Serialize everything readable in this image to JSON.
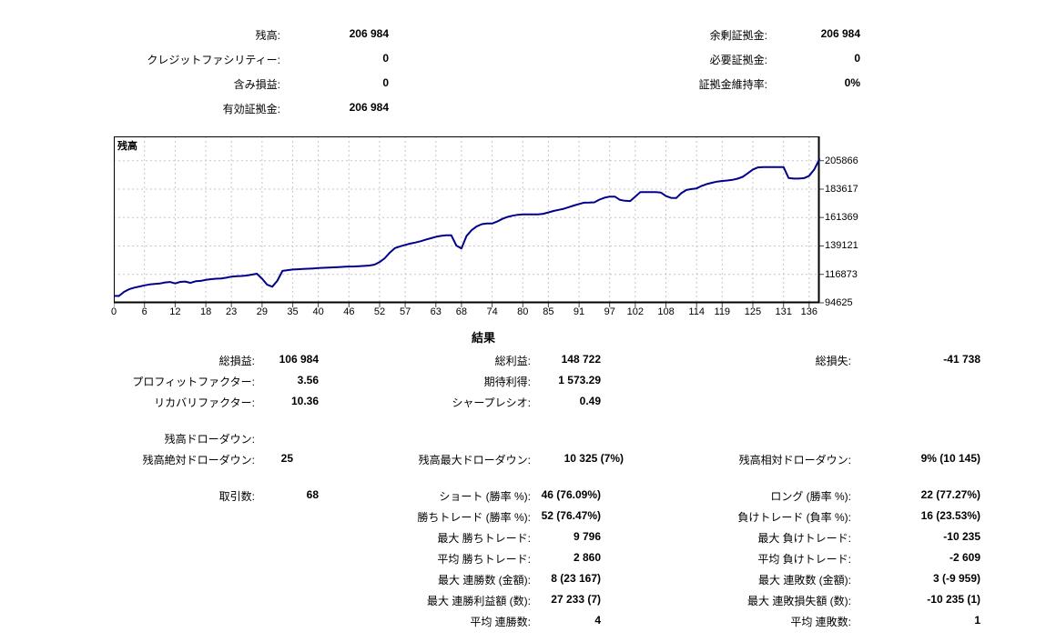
{
  "account_summary": {
    "left": [
      {
        "label": "残高:",
        "value": "206 984"
      },
      {
        "label": "クレジットファシリティー:",
        "value": "0"
      },
      {
        "label": "含み損益:",
        "value": "0"
      },
      {
        "label": "有効証拠金:",
        "value": "206 984"
      }
    ],
    "right": [
      {
        "label": "余剰証拠金:",
        "value": "206 984"
      },
      {
        "label": "必要証拠金:",
        "value": "0"
      },
      {
        "label": "証拠金維持率:",
        "value": "0%"
      }
    ]
  },
  "chart_data": {
    "type": "line",
    "title": "残高",
    "xlabel": "",
    "ylabel": "",
    "grid": "dashed",
    "legend_position": "top-left-inside",
    "x_range": [
      0,
      138
    ],
    "y_axis_min": 94625,
    "y_axis_max": 224900,
    "x_ticks": [
      0,
      6,
      12,
      18,
      23,
      29,
      35,
      40,
      46,
      52,
      57,
      63,
      68,
      74,
      80,
      85,
      91,
      97,
      102,
      108,
      114,
      119,
      125,
      131,
      136
    ],
    "y_ticks": [
      94625,
      116873,
      139121,
      161369,
      183617,
      205866
    ],
    "series": [
      {
        "name": "残高",
        "color": "#00008b",
        "values": [
          100000,
          99975,
          103200,
          105200,
          106500,
          107400,
          108300,
          109000,
          109400,
          109700,
          110600,
          110900,
          109800,
          111000,
          111300,
          110200,
          111500,
          111800,
          112600,
          113100,
          113500,
          113700,
          114300,
          115100,
          115400,
          115600,
          116000,
          116700,
          117400,
          113500,
          108800,
          107255,
          112000,
          119600,
          120200,
          120700,
          120900,
          121100,
          121300,
          121500,
          121800,
          122000,
          122200,
          122400,
          122600,
          122800,
          123000,
          123100,
          123300,
          123500,
          123800,
          124500,
          126500,
          129500,
          134000,
          137500,
          138800,
          140000,
          141000,
          141800,
          142800,
          144000,
          145200,
          146300,
          147000,
          147500,
          147500,
          139500,
          137175,
          147000,
          151500,
          154500,
          156200,
          156700,
          156700,
          158300,
          160300,
          161800,
          162800,
          163500,
          163800,
          163800,
          163800,
          163900,
          164300,
          165400,
          166500,
          167400,
          168200,
          169500,
          170800,
          172000,
          173000,
          173100,
          173300,
          175400,
          176900,
          177800,
          177800,
          175200,
          174500,
          174300,
          177800,
          181300,
          181300,
          181300,
          181300,
          181000,
          178200,
          176800,
          176600,
          180500,
          183000,
          183700,
          184200,
          186200,
          187600,
          188600,
          189500,
          190000,
          190400,
          190900,
          191800,
          193200,
          196000,
          199000,
          200600,
          200900,
          200900,
          200900,
          200900,
          200900,
          192300,
          191900,
          191900,
          192200,
          194000,
          199000,
          206984
        ]
      }
    ]
  },
  "results": {
    "title": "結果",
    "rows": [
      {
        "c1l": "総損益:",
        "c1v": "106 984",
        "c2l": "総利益:",
        "c2v": "148 722",
        "c3l": "総損失:",
        "c3v": "-41 738"
      },
      {
        "c1l": "プロフィットファクター:",
        "c1v": "3.56",
        "c2l": "期待利得:",
        "c2v": "1 573.29"
      },
      {
        "c1l": "リカバリファクター:",
        "c1v": "10.36",
        "c2l": "シャープレシオ:",
        "c2v": "0.49"
      },
      {
        "c1l": "残高ドローダウン:"
      },
      {
        "c1l": "残高絶対ドローダウン:",
        "c1v": "25",
        "c2l": "残高最大ドローダウン:",
        "c2v": "10 325 (7%)",
        "c3l": "残高相対ドローダウン:",
        "c3v": "9% (10 145)"
      },
      {
        "c1l": "取引数:",
        "c1v": "68",
        "c2l": "ショート (勝率 %):",
        "c2v": "46 (76.09%)",
        "c3l": "ロング (勝率 %):",
        "c3v": "22 (77.27%)"
      },
      {
        "c2l": "勝ちトレード (勝率 %):",
        "c2v": "52 (76.47%)",
        "c3l": "負けトレード (負率 %):",
        "c3v": "16 (23.53%)"
      },
      {
        "c2l": "最大 勝ちトレード:",
        "c2v": "9 796",
        "c3l": "最大 負けトレード:",
        "c3v": "-10 235"
      },
      {
        "c2l": "平均 勝ちトレード:",
        "c2v": "2 860",
        "c3l": "平均 負けトレード:",
        "c3v": "-2 609"
      },
      {
        "c2l": "最大 連勝数 (金額):",
        "c2v": "8 (23 167)",
        "c3l": "最大 連敗数 (金額):",
        "c3v": "3 (-9 959)"
      },
      {
        "c2l": "最大 連勝利益額 (数):",
        "c2v": "27 233 (7)",
        "c3l": "最大 連敗損失額 (数):",
        "c3v": "-10 235 (1)"
      },
      {
        "c2l": "平均 連勝数:",
        "c2v": "4",
        "c3l": "平均 連敗数:",
        "c3v": "1"
      }
    ]
  }
}
